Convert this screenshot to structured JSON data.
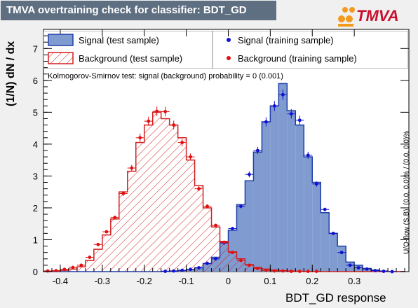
{
  "header": {
    "title": "TMVA overtraining check for classifier: BDT_GD",
    "logo_text": "TMVA"
  },
  "side_note": "U/O-flow (S,B): (0.0, 0.0)% / (0.0, 0.0)%",
  "ks_text": "Kolmogorov-Smirnov test: signal (background) probability =     0 (0.001)",
  "colors": {
    "signal_fill": "#7f9bd0",
    "signal_line": "#1f3fa8",
    "background_hatch": "#d32020",
    "marker_signal": "#1010d0",
    "marker_background": "#e01010"
  },
  "chart_data": {
    "type": "bar",
    "title": "TMVA overtraining check for classifier: BDT_GD",
    "xlabel": "BDT_GD response",
    "ylabel": "(1/N) dN / dx",
    "xlim": [
      -0.44,
      0.43
    ],
    "ylim": [
      0,
      7.6
    ],
    "x_ticks": [
      "-0.4",
      "-0.3",
      "-0.2",
      "-0.1",
      "0",
      "0.1",
      "0.2",
      "0.3"
    ],
    "x_tick_values": [
      -0.4,
      -0.3,
      -0.2,
      -0.1,
      0,
      0.1,
      0.2,
      0.3
    ],
    "y_ticks": [
      "0",
      "1",
      "2",
      "3",
      "4",
      "5",
      "6",
      "7"
    ],
    "y_tick_values": [
      0,
      1,
      2,
      3,
      4,
      5,
      6,
      7
    ],
    "bin_edges": [
      -0.44,
      -0.42,
      -0.4,
      -0.38,
      -0.36,
      -0.34,
      -0.32,
      -0.3,
      -0.28,
      -0.26,
      -0.24,
      -0.22,
      -0.2,
      -0.18,
      -0.16,
      -0.14,
      -0.12,
      -0.1,
      -0.08,
      -0.06,
      -0.04,
      -0.02,
      0.0,
      0.02,
      0.04,
      0.06,
      0.08,
      0.1,
      0.12,
      0.14,
      0.16,
      0.18,
      0.2,
      0.22,
      0.24,
      0.26,
      0.28,
      0.3,
      0.32,
      0.34,
      0.36,
      0.38,
      0.4,
      0.42
    ],
    "legend": {
      "signal_test": "Signal (test sample)",
      "background_test": "Background (test sample)",
      "signal_train": "Signal (training sample)",
      "background_train": "Background (training sample)"
    },
    "series": [
      {
        "name": "Signal (test sample)",
        "style": "filled-histogram",
        "values": [
          0,
          0,
          0,
          0,
          0,
          0,
          0,
          0,
          0,
          0,
          0,
          0,
          0,
          0,
          0.01,
          0.02,
          0.03,
          0.06,
          0.12,
          0.25,
          0.45,
          0.95,
          1.3,
          2.1,
          2.85,
          3.75,
          4.7,
          5.2,
          5.9,
          5.05,
          4.6,
          3.6,
          2.8,
          1.85,
          1.2,
          0.8,
          0.3,
          0.2,
          0.1,
          0.05,
          0.02,
          0,
          0
        ]
      },
      {
        "name": "Background (test sample)",
        "style": "hatched-histogram",
        "values": [
          0.01,
          0.02,
          0.04,
          0.08,
          0.15,
          0.35,
          0.7,
          1.15,
          1.65,
          2.5,
          3.15,
          4.05,
          4.6,
          5.0,
          4.8,
          4.6,
          4.2,
          3.5,
          2.7,
          2.0,
          1.4,
          0.95,
          0.62,
          0.4,
          0.22,
          0.13,
          0.08,
          0.05,
          0.03,
          0.02,
          0.01,
          0,
          0,
          0,
          0,
          0,
          0,
          0,
          0,
          0,
          0,
          0,
          0
        ]
      },
      {
        "name": "Signal (training sample)",
        "style": "markers",
        "values": [
          null,
          null,
          null,
          null,
          null,
          null,
          null,
          null,
          null,
          null,
          null,
          null,
          null,
          null,
          0.01,
          0.02,
          0.04,
          0.07,
          0.12,
          0.26,
          0.4,
          0.9,
          1.35,
          2.05,
          3.05,
          3.8,
          4.7,
          5.2,
          5.55,
          4.95,
          4.75,
          3.65,
          2.75,
          1.95,
          1.2,
          0.6,
          0.2,
          0.12,
          0.08,
          0.03,
          0.01,
          0,
          null
        ]
      },
      {
        "name": "Background (training sample)",
        "style": "markers",
        "values": [
          0.02,
          0.03,
          0.07,
          0.13,
          0.2,
          0.45,
          0.85,
          1.25,
          1.7,
          2.45,
          3.25,
          4.2,
          4.72,
          5.03,
          5.02,
          4.6,
          4.05,
          3.6,
          2.6,
          2.05,
          1.45,
          0.92,
          0.6,
          0.35,
          0.2,
          0.1,
          0.04,
          0.02,
          0.02,
          0.01,
          0.01,
          0.01,
          0.01,
          null,
          null,
          null,
          null,
          null,
          null,
          null,
          null,
          null,
          null
        ]
      }
    ]
  }
}
